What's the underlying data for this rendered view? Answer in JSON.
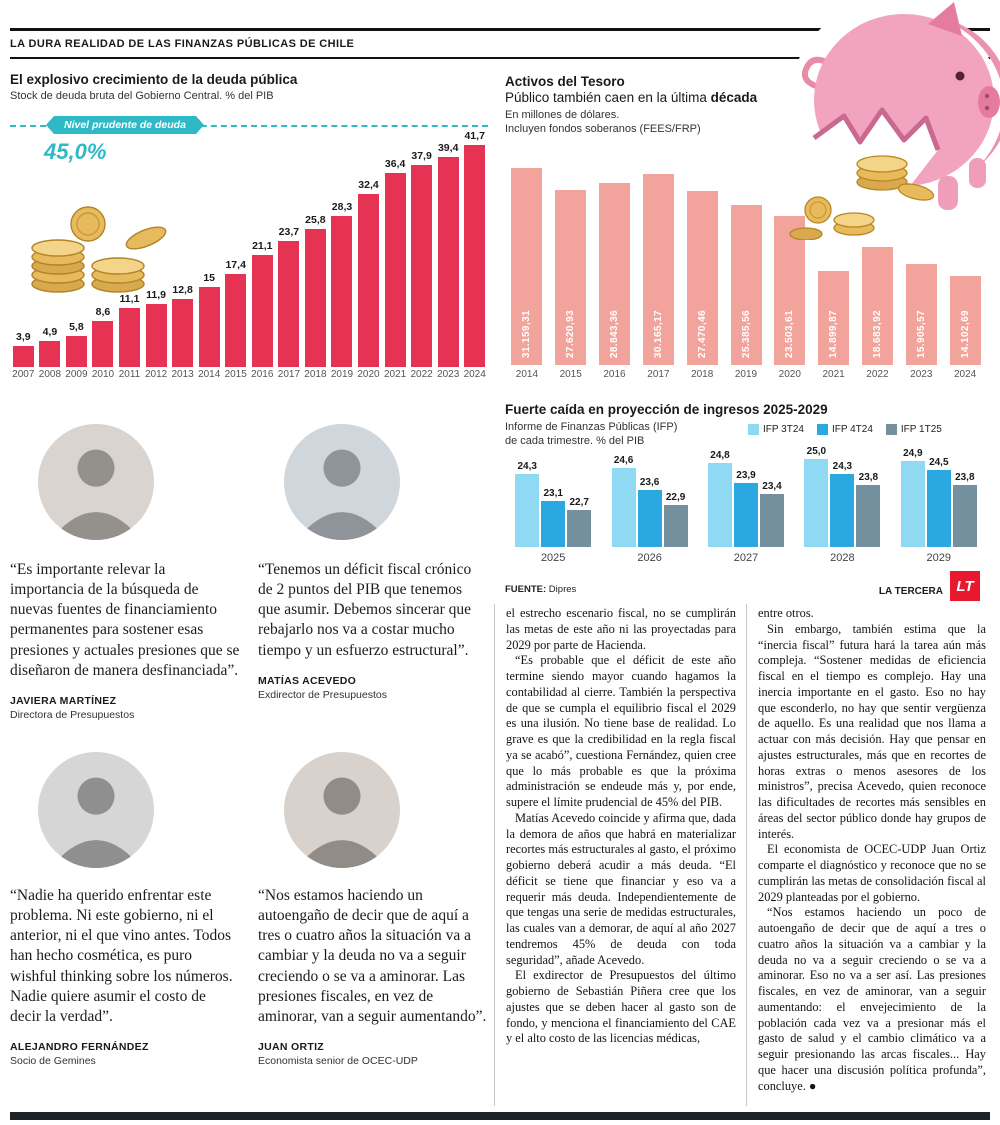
{
  "kicker": "LA DURA REALIDAD DE LAS FINANZAS PÚBLICAS DE CHILE",
  "colors": {
    "debt_bar": "#e73353",
    "treasury_bar": "#f2a49c",
    "teal_reference": "#2fb9c6",
    "lt_red": "#e8192e"
  },
  "chart_data": [
    {
      "id": "debt",
      "type": "bar",
      "title": "El explosivo crecimiento de la deuda pública",
      "subtitle": "Stock de deuda bruta del Gobierno Central. % del PIB",
      "categories": [
        "2007",
        "2008",
        "2009",
        "2010",
        "2011",
        "2012",
        "2013",
        "2014",
        "2015",
        "2016",
        "2017",
        "2018",
        "2019",
        "2020",
        "2021",
        "2022",
        "2023",
        "2024"
      ],
      "values": [
        3.9,
        4.9,
        5.8,
        8.6,
        11.1,
        11.9,
        12.8,
        15,
        17.4,
        21.1,
        23.7,
        25.8,
        28.3,
        32.4,
        36.4,
        37.9,
        39.4,
        41.7
      ],
      "value_labels": [
        "3,9",
        "4,9",
        "5,8",
        "8,6",
        "11,1",
        "11,9",
        "12,8",
        "15",
        "17,4",
        "21,1",
        "23,7",
        "25,8",
        "28,3",
        "32,4",
        "36,4",
        "37,9",
        "39,4",
        "41,7"
      ],
      "reference_line": {
        "label": "Nivel prudente de deuda",
        "value": 45.0,
        "value_label": "45,0%"
      },
      "bar_color": "#e73353",
      "ylim": [
        0,
        45
      ],
      "grid": false,
      "xlabel": "",
      "ylabel": "% del PIB"
    },
    {
      "id": "treasury",
      "type": "bar",
      "title": "Activos del Tesoro Público también caen en la última década",
      "title_line1": "Activos del Tesoro",
      "title_line2_prefix": "Público también caen en la última ",
      "title_line2_emph": "década",
      "subtitle_line1": "En millones de dólares.",
      "subtitle_line2": "Incluyen fondos soberanos (FEES/FRP)",
      "categories": [
        "2014",
        "2015",
        "2016",
        "2017",
        "2018",
        "2019",
        "2020",
        "2021",
        "2022",
        "2023",
        "2024"
      ],
      "values": [
        31159.31,
        27620.93,
        28843.36,
        30165.17,
        27470.46,
        25385.56,
        23503.61,
        14899.87,
        18683.92,
        15905.57,
        14102.69
      ],
      "value_labels": [
        "31.159,31",
        "27.620,93",
        "28.843,36",
        "30.165,17",
        "27.470,46",
        "25.385,56",
        "23.503,61",
        "14.899,87",
        "18.683,92",
        "15.905,57",
        "14.102,69"
      ],
      "bar_color": "#f2a49c",
      "ylim": [
        0,
        32000
      ],
      "grid": false,
      "xlabel": "",
      "ylabel": "Millones de dólares"
    },
    {
      "id": "income",
      "type": "grouped-bar",
      "title": "Fuerte caída en proyección de ingresos 2025-2029",
      "subtitle_line1": "Informe de Finanzas Públicas (IFP)",
      "subtitle_line2": "de cada trimestre. % del PIB",
      "categories": [
        "2025",
        "2026",
        "2027",
        "2028",
        "2029"
      ],
      "series": [
        {
          "name": "IFP 3T24",
          "color": "#8fd9f2",
          "values": [
            24.3,
            24.6,
            24.8,
            25.0,
            24.9
          ],
          "labels": [
            "24,3",
            "24,6",
            "24,8",
            "25,0",
            "24,9"
          ]
        },
        {
          "name": "IFP 4T24",
          "color": "#2aa9e0",
          "values": [
            23.1,
            23.6,
            23.9,
            24.3,
            24.5
          ],
          "labels": [
            "23,1",
            "23,6",
            "23,9",
            "24,3",
            "24,5"
          ]
        },
        {
          "name": "IFP 1T25",
          "color": "#74909e",
          "values": [
            22.7,
            22.9,
            23.4,
            23.8,
            23.8
          ],
          "labels": [
            "22,7",
            "22,9",
            "23,4",
            "23,8",
            "23,8"
          ]
        }
      ],
      "ylim": [
        21,
        26
      ],
      "grid": false,
      "legend_position": "top-right"
    }
  ],
  "footer_brand": {
    "source_label": "FUENTE:",
    "source_value": " Dipres",
    "brand": "LA TERCERA",
    "logo": "LT"
  },
  "quotes": [
    {
      "text": "“Es importante relevar la importancia de la búsqueda de nuevas fuentes de financiamiento permanentes para sostener esas presiones y actuales presiones que se diseñaron de manera desfinanciada”.",
      "name": "JAVIERA MARTÍNEZ",
      "role": "Directora de Presupuestos"
    },
    {
      "text": "“Tenemos un déficit fiscal crónico de 2 puntos del PIB que tenemos que asumir. Debemos sincerar que rebajarlo nos va a costar mucho tiempo y un esfuerzo estructural”.",
      "name": "MATÍAS ACEVEDO",
      "role": "Exdirector de Presupuestos"
    },
    {
      "text": "“Nadie ha querido enfrentar este problema. Ni este gobierno, ni el anterior, ni el que vino antes. Todos han hecho cosmética, es puro wishful thinking sobre los números. Nadie quiere asumir el costo de decir la verdad”.",
      "name": "ALEJANDRO FERNÁNDEZ",
      "role": "Socio de Gemines"
    },
    {
      "text": "“Nos estamos haciendo un autoengaño de decir que de aquí a tres o cuatro años la situación va a cambiar y la deuda no va a seguir creciendo o se va a aminorar. Las presiones fiscales, en vez de aminorar, van a seguir aumentando”.",
      "name": "JUAN ORTIZ",
      "role": "Economista senior de OCEC-UDP"
    }
  ],
  "article": {
    "col1": [
      "el estrecho escenario fiscal, no se cumplirán las metas de este año ni las proyectadas para 2029 por parte de Hacienda.",
      "“Es probable que el déficit de este año termine siendo mayor cuando hagamos la contabilidad al cierre. También la perspectiva de que se cumpla el equilibrio fiscal el 2029 es una ilusión. No tiene base de realidad. Lo grave es que la credibilidad en la regla fiscal ya se acabó”, cuestiona Fernández, quien cree que lo más probable es que la próxima administración se endeude más y, por ende, supere el límite prudencial de 45% del PIB.",
      "Matías Acevedo coincide y afirma que, dada la demora de años que habrá en materializar recortes más estructurales al gasto, el próximo gobierno deberá acudir a más deuda. “El déficit se tiene que financiar y eso va a requerir más deuda. Independientemente de que tengas una serie de medidas estructurales, las cuales van a demorar, de aquí al año 2027 tendremos 45% de deuda con toda seguridad”, añade Acevedo.",
      "El exdirector de Presupuestos del último gobierno de Sebastián Piñera cree que los ajustes que se deben hacer al gasto son de fondo, y menciona el financiamiento del CAE y el alto costo de las licencias médicas,"
    ],
    "col2": [
      "entre otros.",
      "Sin embargo, también estima que la “inercia fiscal” futura hará la tarea aún más compleja. “Sostener medidas de eficiencia fiscal en el tiempo es complejo. Hay una inercia importante en el gasto. Eso no hay que esconderlo, no hay que sentir vergüenza de aquello. Es una realidad que nos llama a actuar con más decisión. Hay que pensar en ajustes estructurales, más que en recortes de horas extras o menos asesores de los ministros”, precisa Acevedo, quien reconoce las dificultades de recortes más sensibles en áreas del sector público donde hay grupos de interés.",
      "El economista de OCEC-UDP Juan Ortiz comparte el diagnóstico y reconoce que no se cumplirán las metas de consolidación fiscal al 2029 planteadas por el gobierno.",
      "“Nos estamos haciendo un poco de autoengaño de decir que de aquí a tres o cuatro años la situación va a cambiar y la deuda no va a seguir creciendo o se va a aminorar. Eso no va a ser así. Las presiones fiscales, en vez de aminorar, van a seguir aumentando: el envejecimiento de la población cada vez va a presionar más el gasto de salud y el cambio climático va a seguir presionando las arcas fiscales... Hay que hacer una discusión política profunda”, concluye. ●"
    ]
  },
  "icons": {
    "piggy_bank": "piggy-bank-illustration",
    "coins": "coins-illustration",
    "lt_logo": "la-tercera-logo"
  }
}
